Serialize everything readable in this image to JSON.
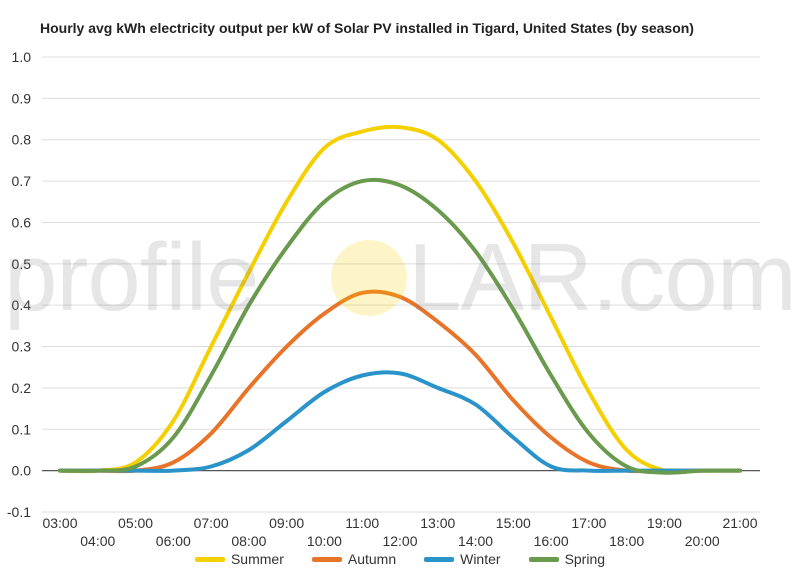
{
  "chart_data": {
    "type": "line",
    "title": "Hourly avg kWh electricity output per kW of Solar PV installed in Tigard, United States (by season)",
    "xlabel": "",
    "ylabel": "",
    "ylim": [
      -0.1,
      1.0
    ],
    "yticks": [
      "-0.1",
      "0.0",
      "0.1",
      "0.2",
      "0.3",
      "0.4",
      "0.5",
      "0.6",
      "0.7",
      "0.8",
      "0.9",
      "1.0"
    ],
    "xticks": [
      "03:00",
      "04:00",
      "05:00",
      "06:00",
      "07:00",
      "08:00",
      "09:00",
      "10:00",
      "11:00",
      "12:00",
      "13:00",
      "14:00",
      "15:00",
      "16:00",
      "17:00",
      "18:00",
      "19:00",
      "20:00",
      "21:00"
    ],
    "grid": true,
    "legend_position": "bottom",
    "x": [
      "03:00",
      "04:00",
      "05:00",
      "06:00",
      "07:00",
      "08:00",
      "09:00",
      "10:00",
      "11:00",
      "12:00",
      "13:00",
      "14:00",
      "15:00",
      "16:00",
      "17:00",
      "18:00",
      "19:00",
      "20:00",
      "21:00"
    ],
    "series": [
      {
        "name": "Summer",
        "color": "#f5d000",
        "values": [
          0.0,
          0.0,
          0.02,
          0.12,
          0.3,
          0.48,
          0.65,
          0.78,
          0.82,
          0.83,
          0.8,
          0.7,
          0.55,
          0.37,
          0.19,
          0.05,
          0.0,
          0.0,
          0.0
        ]
      },
      {
        "name": "Autumn",
        "color": "#e8742a",
        "values": [
          0.0,
          0.0,
          0.0,
          0.02,
          0.09,
          0.2,
          0.3,
          0.38,
          0.43,
          0.42,
          0.36,
          0.28,
          0.17,
          0.08,
          0.02,
          0.0,
          0.0,
          0.0,
          0.0
        ]
      },
      {
        "name": "Winter",
        "color": "#2a93c9",
        "values": [
          0.0,
          0.0,
          0.0,
          0.0,
          0.01,
          0.05,
          0.12,
          0.19,
          0.23,
          0.235,
          0.2,
          0.16,
          0.08,
          0.01,
          0.0,
          0.0,
          0.0,
          0.0,
          0.0
        ]
      },
      {
        "name": "Spring",
        "color": "#6a9a4e",
        "values": [
          0.0,
          0.0,
          0.01,
          0.08,
          0.23,
          0.4,
          0.54,
          0.65,
          0.7,
          0.69,
          0.63,
          0.53,
          0.39,
          0.23,
          0.09,
          0.01,
          -0.005,
          0.0,
          0.0
        ]
      }
    ]
  },
  "watermark": {
    "left": "profile",
    "right": "LAR.com",
    "sun_color": "#f5d000"
  }
}
